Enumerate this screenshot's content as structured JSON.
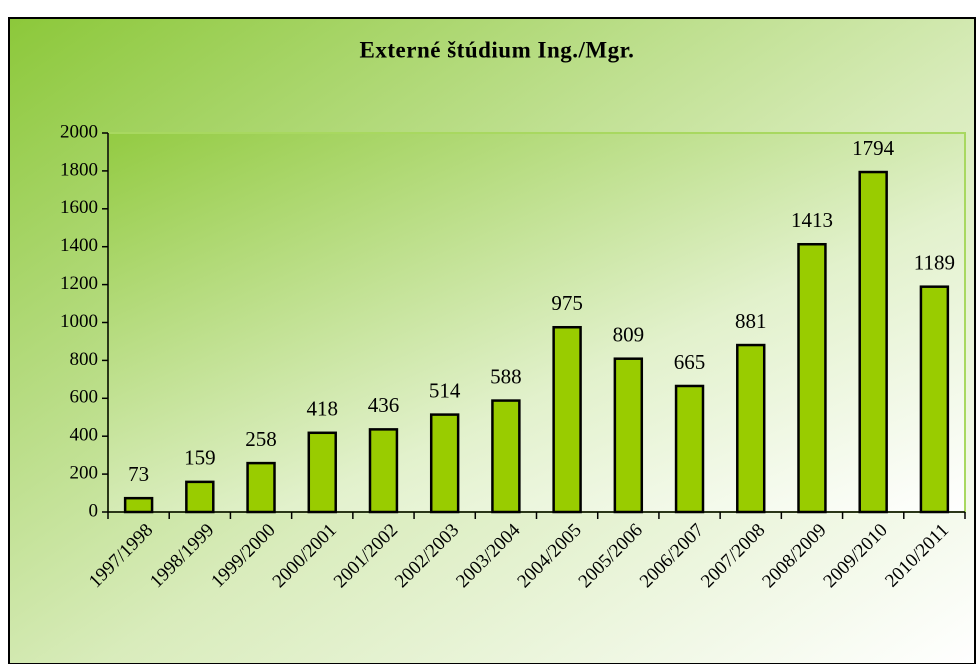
{
  "chart_data": {
    "type": "bar",
    "title": "Externé štúdium Ing./Mgr.",
    "categories": [
      "1997/1998",
      "1998/1999",
      "1999/2000",
      "2000/2001",
      "2001/2002",
      "2002/2003",
      "2003/2004",
      "2004/2005",
      "2005/2006",
      "2006/2007",
      "2007/2008",
      "2008/2009",
      "2009/2010",
      "2010/2011"
    ],
    "values": [
      73,
      159,
      258,
      418,
      436,
      514,
      588,
      975,
      809,
      665,
      881,
      1413,
      1794,
      1189
    ],
    "color": "#99cc00",
    "ylim": [
      0,
      2000
    ],
    "yticks": [
      0,
      200,
      400,
      600,
      800,
      1000,
      1200,
      1400,
      1600,
      1800,
      2000
    ],
    "grid": false
  }
}
